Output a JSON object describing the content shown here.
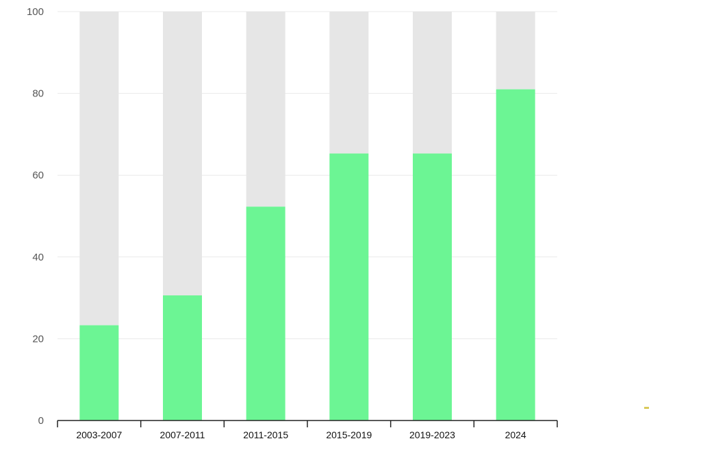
{
  "chart_data": {
    "type": "bar",
    "stacked_to": 100,
    "categories": [
      "2003-2007",
      "2007-2011",
      "2011-2015",
      "2015-2019",
      "2019-2023",
      "2024"
    ],
    "values": [
      23.3,
      30.6,
      52.3,
      65.3,
      65.3,
      81.0
    ],
    "ylim": [
      0,
      100
    ],
    "yticks": [
      0,
      20,
      40,
      60,
      80,
      100
    ],
    "grid": true,
    "legend": "none",
    "colors": {
      "value": "#6cf594",
      "remainder": "#e6e6e6",
      "grid": "#e9e9e9",
      "axis": "#222222"
    }
  }
}
